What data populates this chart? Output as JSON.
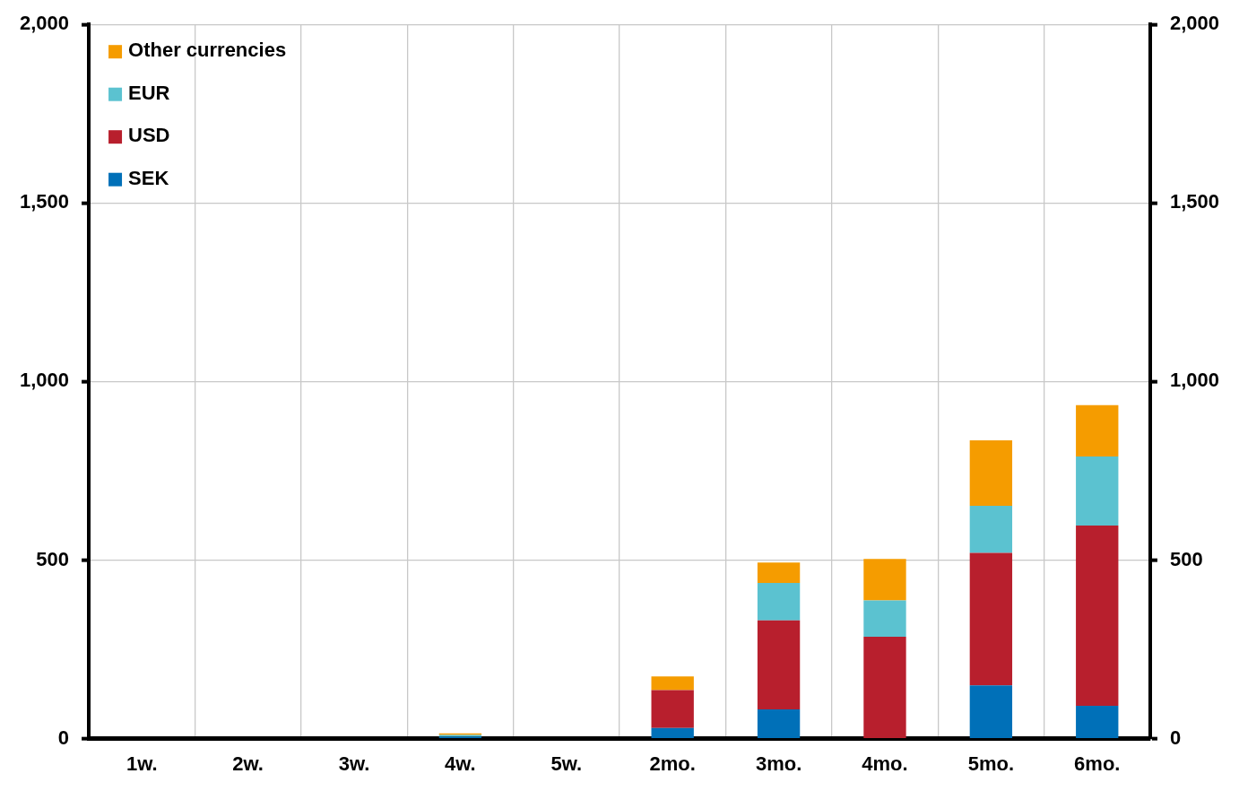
{
  "chart_data": {
    "type": "bar",
    "stacked": true,
    "categories": [
      "1w.",
      "2w.",
      "3w.",
      "4w.",
      "5w.",
      "2mo.",
      "3mo.",
      "4mo.",
      "5mo.",
      "6mo."
    ],
    "series": [
      {
        "name": "SEK",
        "color": "#0070b8",
        "values": [
          0,
          0,
          0,
          5,
          0,
          30,
          82,
          0,
          149,
          92
        ]
      },
      {
        "name": "USD",
        "color": "#b81f2d",
        "values": [
          0,
          0,
          0,
          0,
          0,
          106,
          249,
          285,
          371,
          505
        ]
      },
      {
        "name": "EUR",
        "color": "#5bc2d0",
        "values": [
          0,
          0,
          0,
          5,
          0,
          0,
          105,
          102,
          132,
          193
        ]
      },
      {
        "name": "Other currencies",
        "color": "#f59c00",
        "values": [
          0,
          0,
          0,
          5,
          0,
          38,
          57,
          116,
          183,
          144
        ]
      }
    ],
    "ylim": [
      0,
      2000
    ],
    "yticks": [
      0,
      500,
      {
        "value": 1000,
        "label": "1,000"
      },
      {
        "value": 1500,
        "label": "1,500"
      },
      {
        "value": 2000,
        "label": "2,000"
      }
    ],
    "y2lim": [
      0,
      2000
    ],
    "y2ticks": [
      0,
      500,
      {
        "value": 1000,
        "label": "1,000"
      },
      {
        "value": 1500,
        "label": "1,500"
      },
      {
        "value": 2000,
        "label": "2,000"
      }
    ],
    "grid": true,
    "legend": "top left"
  }
}
